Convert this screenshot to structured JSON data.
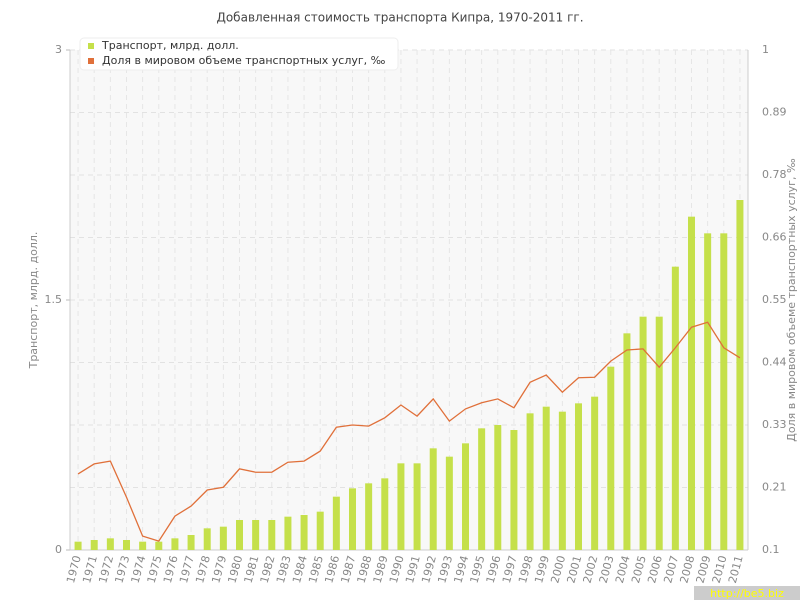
{
  "chart_data": {
    "type": "bar",
    "title": "Добавленная стоимость транспорта Кипра, 1970-2011 гг.",
    "categories": [
      "1970",
      "1971",
      "1972",
      "1973",
      "1974",
      "1975",
      "1976",
      "1977",
      "1978",
      "1979",
      "1980",
      "1981",
      "1982",
      "1983",
      "1984",
      "1985",
      "1986",
      "1987",
      "1988",
      "1989",
      "1990",
      "1991",
      "1992",
      "1993",
      "1994",
      "1995",
      "1996",
      "1997",
      "1998",
      "1999",
      "2000",
      "2001",
      "2002",
      "2003",
      "2004",
      "2005",
      "2006",
      "2007",
      "2008",
      "2009",
      "2010",
      "2011"
    ],
    "series": [
      {
        "name": "Транспорт, млрд. долл.",
        "type": "bar",
        "color": "#c5e04a",
        "values": [
          0.05,
          0.06,
          0.07,
          0.06,
          0.05,
          0.05,
          0.07,
          0.09,
          0.13,
          0.14,
          0.18,
          0.18,
          0.18,
          0.2,
          0.21,
          0.23,
          0.32,
          0.37,
          0.4,
          0.43,
          0.52,
          0.52,
          0.61,
          0.56,
          0.64,
          0.73,
          0.75,
          0.72,
          0.82,
          0.86,
          0.83,
          0.88,
          0.92,
          1.1,
          1.3,
          1.4,
          1.4,
          1.7,
          2.0,
          1.9,
          1.9,
          2.1
        ]
      },
      {
        "name": "Доля в мировом объеме транспортных услуг, ‰",
        "type": "line",
        "axis": "y2",
        "color": "#e0703a",
        "values": [
          0.237,
          0.255,
          0.26,
          0.195,
          0.125,
          0.116,
          0.161,
          0.179,
          0.208,
          0.213,
          0.246,
          0.24,
          0.24,
          0.258,
          0.26,
          0.278,
          0.321,
          0.325,
          0.323,
          0.338,
          0.361,
          0.341,
          0.372,
          0.332,
          0.354,
          0.365,
          0.372,
          0.356,
          0.402,
          0.415,
          0.384,
          0.41,
          0.411,
          0.44,
          0.46,
          0.462,
          0.429,
          0.464,
          0.501,
          0.51,
          0.464,
          0.446
        ]
      }
    ],
    "ylabel": "Транспорт, млрд. долл.",
    "y2label": "Доля в мировом объеме транспортных услуг, ‰",
    "ylim": [
      0,
      3
    ],
    "yticks": [
      0,
      1.5,
      3
    ],
    "y2lim": [
      0.1,
      1
    ],
    "y2ticks": [
      0.1,
      {
        "value": 0.2125,
        "label": "0.21"
      },
      {
        "value": 0.325,
        "label": "0.33"
      },
      {
        "value": 0.4375,
        "label": "0.44"
      },
      0.55,
      {
        "value": 0.6625,
        "label": "0.66"
      },
      {
        "value": 0.775,
        "label": "0.78"
      },
      {
        "value": 0.8875,
        "label": "0.89"
      },
      1
    ],
    "grid": true,
    "legend": "top-left",
    "watermark": "http://be5.biz"
  }
}
